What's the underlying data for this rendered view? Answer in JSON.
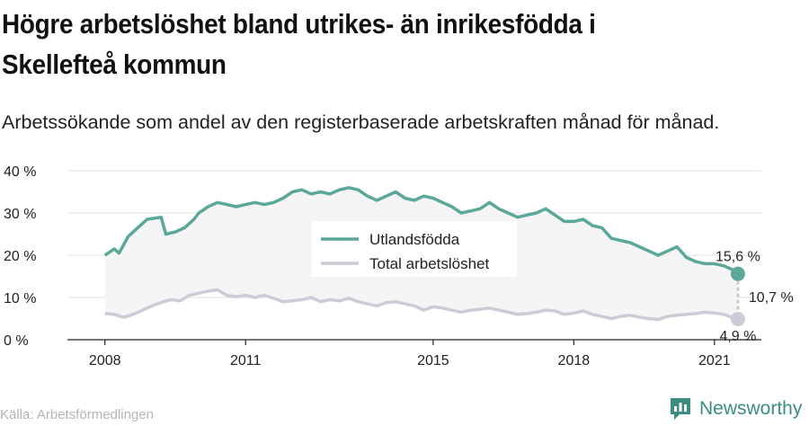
{
  "header": {
    "title": "Högre arbetslöshet bland utrikes- än inrikesfödda i Skellefteå kommun",
    "subtitle": "Arbetssökande som andel av den registerbaserade arbetskraften månad för månad."
  },
  "footer": {
    "source": "Källa: Arbetsförmedlingen",
    "brand": "Newsworthy"
  },
  "colors": {
    "utlandsfodda": "#5ba89a",
    "total": "#cccbd6",
    "band": "#f5f5f5",
    "grid": "#e2e2e2",
    "brand": "#3a8d80"
  },
  "chart_data": {
    "type": "line",
    "ylim": [
      0,
      40
    ],
    "y_ticks": [
      "0 %",
      "10 %",
      "20 %",
      "30 %",
      "40 %"
    ],
    "x_ticks": [
      "2008",
      "2011",
      "2015",
      "2018",
      "2021"
    ],
    "x_tick_values": [
      2008,
      2011,
      2015,
      2018,
      2021
    ],
    "x_range": [
      2007.2,
      2022.0
    ],
    "legend_position": "center",
    "series": [
      {
        "name": "Utlandsfödda",
        "key": "utlandsfodda",
        "end_label": "15,6 %",
        "points": [
          [
            2008.0,
            20.0
          ],
          [
            2008.2,
            21.5
          ],
          [
            2008.3,
            20.5
          ],
          [
            2008.5,
            24.5
          ],
          [
            2008.7,
            26.5
          ],
          [
            2008.9,
            28.5
          ],
          [
            2009.2,
            29.0
          ],
          [
            2009.3,
            25.0
          ],
          [
            2009.5,
            25.5
          ],
          [
            2009.7,
            26.5
          ],
          [
            2009.9,
            28.5
          ],
          [
            2010.0,
            30.0
          ],
          [
            2010.2,
            31.5
          ],
          [
            2010.4,
            32.5
          ],
          [
            2010.6,
            32.0
          ],
          [
            2010.8,
            31.5
          ],
          [
            2011.0,
            32.0
          ],
          [
            2011.2,
            32.5
          ],
          [
            2011.4,
            32.0
          ],
          [
            2011.6,
            32.5
          ],
          [
            2011.8,
            33.5
          ],
          [
            2012.0,
            35.0
          ],
          [
            2012.2,
            35.5
          ],
          [
            2012.4,
            34.5
          ],
          [
            2012.6,
            35.0
          ],
          [
            2012.8,
            34.5
          ],
          [
            2013.0,
            35.5
          ],
          [
            2013.2,
            36.0
          ],
          [
            2013.4,
            35.5
          ],
          [
            2013.6,
            34.0
          ],
          [
            2013.8,
            33.0
          ],
          [
            2014.0,
            34.0
          ],
          [
            2014.2,
            35.0
          ],
          [
            2014.4,
            33.5
          ],
          [
            2014.6,
            33.0
          ],
          [
            2014.8,
            34.0
          ],
          [
            2015.0,
            33.5
          ],
          [
            2015.2,
            32.5
          ],
          [
            2015.4,
            31.5
          ],
          [
            2015.6,
            30.0
          ],
          [
            2015.8,
            30.5
          ],
          [
            2016.0,
            31.0
          ],
          [
            2016.2,
            32.5
          ],
          [
            2016.4,
            31.0
          ],
          [
            2016.6,
            30.0
          ],
          [
            2016.8,
            29.0
          ],
          [
            2017.0,
            29.5
          ],
          [
            2017.2,
            30.0
          ],
          [
            2017.4,
            31.0
          ],
          [
            2017.6,
            29.5
          ],
          [
            2017.8,
            28.0
          ],
          [
            2018.0,
            28.0
          ],
          [
            2018.2,
            28.5
          ],
          [
            2018.4,
            27.0
          ],
          [
            2018.6,
            26.5
          ],
          [
            2018.8,
            24.0
          ],
          [
            2019.0,
            23.5
          ],
          [
            2019.2,
            23.0
          ],
          [
            2019.4,
            22.0
          ],
          [
            2019.6,
            21.0
          ],
          [
            2019.8,
            20.0
          ],
          [
            2020.0,
            21.0
          ],
          [
            2020.2,
            22.0
          ],
          [
            2020.4,
            19.5
          ],
          [
            2020.6,
            18.5
          ],
          [
            2020.8,
            18.0
          ],
          [
            2021.0,
            18.0
          ],
          [
            2021.2,
            17.5
          ],
          [
            2021.4,
            16.5
          ],
          [
            2021.5,
            15.6
          ]
        ]
      },
      {
        "name": "Total arbetslöshet",
        "key": "total",
        "end_label": "4,9 %",
        "points": [
          [
            2008.0,
            6.2
          ],
          [
            2008.2,
            6.0
          ],
          [
            2008.4,
            5.3
          ],
          [
            2008.6,
            6.0
          ],
          [
            2008.8,
            7.0
          ],
          [
            2009.0,
            8.0
          ],
          [
            2009.2,
            8.8
          ],
          [
            2009.4,
            9.5
          ],
          [
            2009.6,
            9.2
          ],
          [
            2009.8,
            10.5
          ],
          [
            2010.0,
            11.0
          ],
          [
            2010.2,
            11.5
          ],
          [
            2010.4,
            11.8
          ],
          [
            2010.6,
            10.5
          ],
          [
            2010.8,
            10.2
          ],
          [
            2011.0,
            10.5
          ],
          [
            2011.2,
            10.0
          ],
          [
            2011.4,
            10.5
          ],
          [
            2011.6,
            9.8
          ],
          [
            2011.8,
            9.0
          ],
          [
            2012.0,
            9.2
          ],
          [
            2012.2,
            9.5
          ],
          [
            2012.4,
            10.0
          ],
          [
            2012.6,
            9.0
          ],
          [
            2012.8,
            9.5
          ],
          [
            2013.0,
            9.2
          ],
          [
            2013.2,
            9.8
          ],
          [
            2013.4,
            9.0
          ],
          [
            2013.6,
            8.5
          ],
          [
            2013.8,
            8.0
          ],
          [
            2014.0,
            8.8
          ],
          [
            2014.2,
            9.0
          ],
          [
            2014.4,
            8.5
          ],
          [
            2014.6,
            8.0
          ],
          [
            2014.8,
            7.0
          ],
          [
            2015.0,
            7.8
          ],
          [
            2015.2,
            7.5
          ],
          [
            2015.4,
            7.0
          ],
          [
            2015.6,
            6.5
          ],
          [
            2015.8,
            7.0
          ],
          [
            2016.0,
            7.2
          ],
          [
            2016.2,
            7.5
          ],
          [
            2016.4,
            7.0
          ],
          [
            2016.6,
            6.5
          ],
          [
            2016.8,
            6.0
          ],
          [
            2017.0,
            6.2
          ],
          [
            2017.2,
            6.5
          ],
          [
            2017.4,
            7.0
          ],
          [
            2017.6,
            6.8
          ],
          [
            2017.8,
            6.0
          ],
          [
            2018.0,
            6.3
          ],
          [
            2018.2,
            6.8
          ],
          [
            2018.4,
            6.0
          ],
          [
            2018.6,
            5.5
          ],
          [
            2018.8,
            5.0
          ],
          [
            2019.0,
            5.5
          ],
          [
            2019.2,
            5.8
          ],
          [
            2019.4,
            5.3
          ],
          [
            2019.6,
            5.0
          ],
          [
            2019.8,
            4.8
          ],
          [
            2020.0,
            5.5
          ],
          [
            2020.2,
            5.8
          ],
          [
            2020.4,
            6.0
          ],
          [
            2020.6,
            6.2
          ],
          [
            2020.8,
            6.5
          ],
          [
            2021.0,
            6.3
          ],
          [
            2021.2,
            6.0
          ],
          [
            2021.4,
            5.2
          ],
          [
            2021.5,
            4.9
          ]
        ]
      }
    ],
    "difference_label": "10,7 %"
  }
}
